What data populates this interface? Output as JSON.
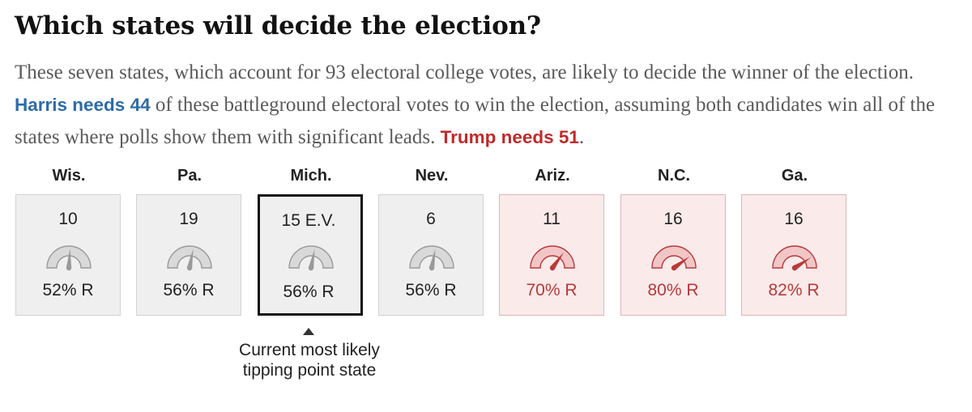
{
  "title": "Which states will decide the election?",
  "intro": {
    "part1": "These seven states, which account for 93 electoral college votes, are likely to decide the winner of the election. ",
    "harris": "Harris needs 44",
    "part2": " of these battleground electoral votes to win the election, assuming both candidates win all of the states where polls show them with significant leads. ",
    "trump": "Trump needs 51",
    "part3": "."
  },
  "colors": {
    "harris_blue": "#2d6ba8",
    "trump_red": "#bf2a2a",
    "gauge_gray": "#bdbdbd",
    "gauge_red_fill": "#f2c6c6",
    "gauge_red_stroke": "#b83a3a"
  },
  "chart_data": {
    "type": "table",
    "states": [
      {
        "name": "Wis.",
        "ev": "10",
        "probability_r": 52,
        "label": "52% R",
        "lean": "tossup"
      },
      {
        "name": "Pa.",
        "ev": "19",
        "probability_r": 56,
        "label": "56% R",
        "lean": "tossup"
      },
      {
        "name": "Mich.",
        "ev": "15  E.V.",
        "probability_r": 56,
        "label": "56% R",
        "lean": "tossup",
        "tipping_point": true
      },
      {
        "name": "Nev.",
        "ev": "6",
        "probability_r": 56,
        "label": "56% R",
        "lean": "tossup"
      },
      {
        "name": "Ariz.",
        "ev": "11",
        "probability_r": 70,
        "label": "70% R",
        "lean": "republican"
      },
      {
        "name": "N.C.",
        "ev": "16",
        "probability_r": 80,
        "label": "80% R",
        "lean": "republican"
      },
      {
        "name": "Ga.",
        "ev": "16",
        "probability_r": 82,
        "label": "82% R",
        "lean": "republican"
      }
    ],
    "annotation": {
      "line1": "Current most likely",
      "line2": "tipping point state"
    }
  }
}
